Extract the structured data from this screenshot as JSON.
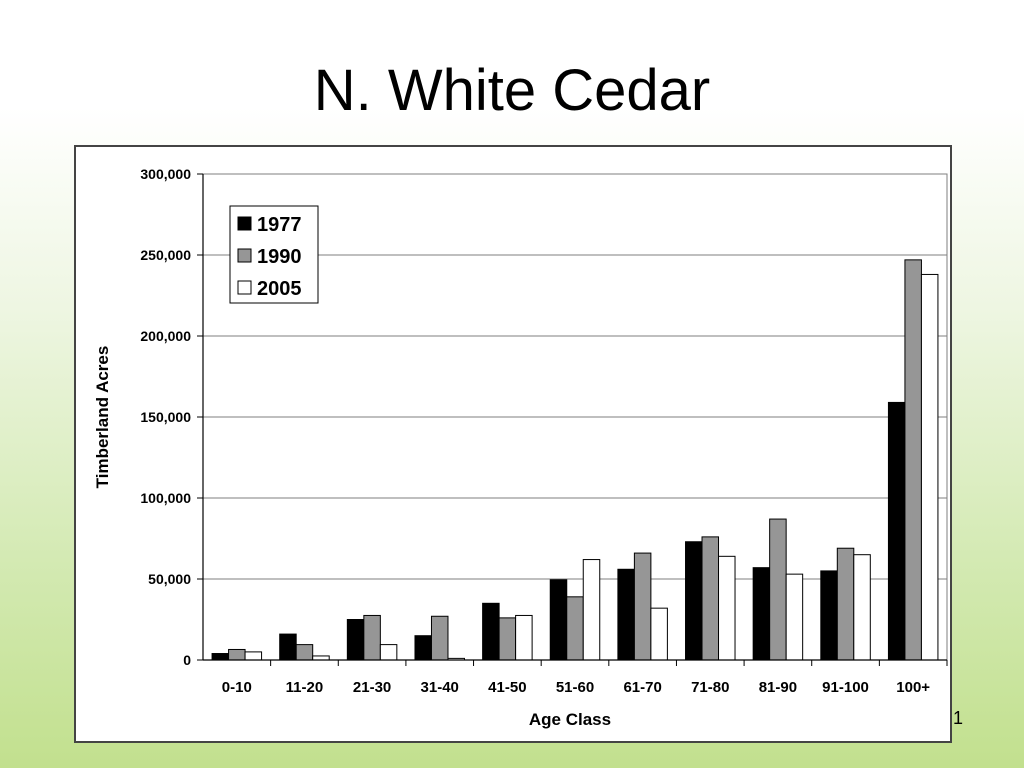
{
  "slide": {
    "title": "N. White Cedar",
    "page_number": "1"
  },
  "chart_data": {
    "type": "bar",
    "title": "",
    "xlabel": "Age Class",
    "ylabel": "Timberland Acres",
    "ylim": [
      0,
      300000
    ],
    "yticks": [
      0,
      50000,
      100000,
      150000,
      200000,
      250000,
      300000
    ],
    "ytick_labels": [
      "0",
      "50,000",
      "100,000",
      "150,000",
      "200,000",
      "250,000",
      "300,000"
    ],
    "grid": "horizontal",
    "legend_position": "top-left",
    "categories": [
      "0-10",
      "11-20",
      "21-30",
      "31-40",
      "41-50",
      "51-60",
      "61-70",
      "71-80",
      "81-90",
      "91-100",
      "100+"
    ],
    "series": [
      {
        "name": "1977",
        "color": "#000000",
        "values": [
          4000,
          16000,
          25000,
          15000,
          35000,
          49500,
          56000,
          73000,
          57000,
          55000,
          159000
        ]
      },
      {
        "name": "1990",
        "color": "#969696",
        "values": [
          6500,
          9500,
          27500,
          27000,
          26000,
          39000,
          66000,
          76000,
          87000,
          69000,
          247000
        ]
      },
      {
        "name": "2005",
        "color": "#ffffff",
        "values": [
          5000,
          2500,
          9500,
          1000,
          27500,
          62000,
          32000,
          64000,
          53000,
          65000,
          238000
        ]
      }
    ]
  }
}
